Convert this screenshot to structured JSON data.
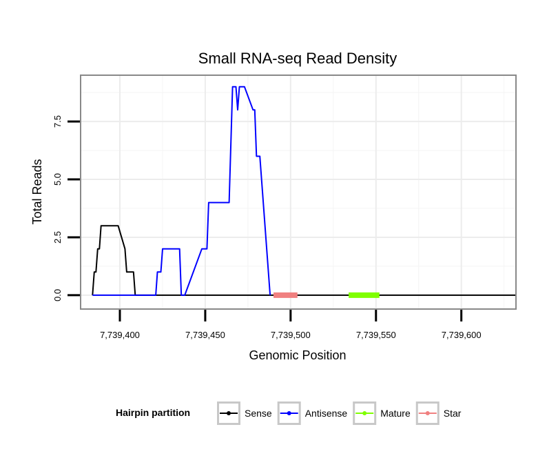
{
  "chart_data": {
    "type": "line",
    "title": "Small RNA-seq Read Density",
    "xlabel": "Genomic Position",
    "ylabel": "Total Reads",
    "xlim": [
      7739377,
      7739632
    ],
    "ylim": [
      -0.6,
      9.5
    ],
    "x_ticks": [
      7739400,
      7739450,
      7739500,
      7739550,
      7739600
    ],
    "x_tick_labels": [
      "7,739,400",
      "7,739,450",
      "7,739,500",
      "7,739,550",
      "7,739,600"
    ],
    "y_ticks": [
      0,
      2.5,
      5,
      7.5
    ],
    "y_tick_labels": [
      "0.0",
      "2.5",
      "5.0",
      "7.5"
    ],
    "grid": true,
    "legend": {
      "title": "Hairpin partition",
      "position": "bottom",
      "entries": [
        "Sense",
        "Antisense",
        "Mature",
        "Star"
      ]
    },
    "series": [
      {
        "name": "Sense",
        "color": "#000000",
        "x": [
          7739384,
          7739385,
          7739386,
          7739387,
          7739388,
          7739389,
          7739390,
          7739399,
          7739403,
          7739404,
          7739405,
          7739406,
          7739408,
          7739409,
          7739410,
          7739632
        ],
        "y": [
          0,
          1,
          1,
          2,
          2,
          3,
          3,
          3,
          2,
          1,
          1,
          1,
          1,
          0,
          0,
          0
        ]
      },
      {
        "name": "Antisense",
        "color": "#0000ff",
        "x": [
          7739384,
          7739421,
          7739422,
          7739423,
          7739424,
          7739425,
          7739434,
          7739435,
          7739436,
          7739437,
          7739438,
          7739448,
          7739449,
          7739451,
          7739452,
          7739463,
          7739464,
          7739466,
          7739467,
          7739468,
          7739469,
          7739470,
          7739472,
          7739473,
          7739478,
          7739479,
          7739480,
          7739481,
          7739482,
          7739488
        ],
        "y": [
          0,
          0,
          1,
          1,
          1,
          2,
          2,
          2,
          0,
          0,
          0,
          2,
          2,
          2,
          4,
          4,
          4,
          9,
          9,
          9,
          8,
          9,
          9,
          9,
          8,
          8,
          6,
          6,
          6,
          0
        ]
      }
    ],
    "regions": [
      {
        "name": "Mature",
        "color": "#7fff00",
        "x_start": 7739534,
        "x_end": 7739552
      },
      {
        "name": "Star",
        "color": "#f08080",
        "x_start": 7739490,
        "x_end": 7739504
      }
    ]
  }
}
